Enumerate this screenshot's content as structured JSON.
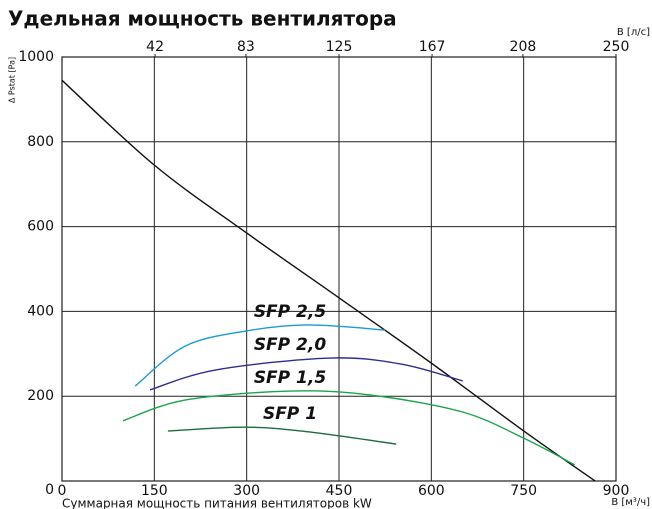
{
  "chart_data": {
    "type": "line",
    "title": "Удельная мощность вентилятора",
    "ylabel": "Δ Pstat [Pa]",
    "xlabel": "Суммарная мощность питания вентиляторов kW",
    "x_unit_label": "В [м³/ч]",
    "x2_unit_label": "В [л/с]",
    "xlim": [
      0,
      900
    ],
    "xticks": [
      0,
      150,
      300,
      450,
      600,
      750,
      900
    ],
    "x2lim": [
      0,
      250
    ],
    "x2ticks": [
      42,
      83,
      125,
      167,
      208,
      250
    ],
    "ylim": [
      0,
      1000
    ],
    "yticks": [
      0,
      200,
      400,
      600,
      800,
      1000
    ],
    "grid": true,
    "series": [
      {
        "color": "#111111",
        "x": [
          0,
          150,
          300,
          450,
          600,
          750,
          866
        ],
        "values": [
          945,
          745,
          585,
          432,
          278,
          118,
          0
        ]
      },
      {
        "name": "SFP 2,5",
        "color": "#1a9ad6",
        "x": [
          119,
          200,
          300,
          400,
          525
        ],
        "values": [
          224,
          318,
          354,
          368,
          356
        ]
      },
      {
        "name": "SFP 2,0",
        "color": "#2b2f8f",
        "x": [
          143,
          250,
          435,
          550,
          651
        ],
        "values": [
          215,
          262,
          290,
          276,
          236
        ]
      },
      {
        "name": "SFP 1,5",
        "color": "#1aa64a",
        "x": [
          99,
          200,
          370,
          500,
          650,
          750,
          833
        ],
        "values": [
          142,
          191,
          212,
          203,
          163,
          101,
          38
        ]
      },
      {
        "name": "SFP 1",
        "color": "#1a6e3a",
        "x": [
          172,
          297,
          400,
          543
        ],
        "values": [
          118,
          127,
          116,
          87
        ]
      }
    ]
  }
}
